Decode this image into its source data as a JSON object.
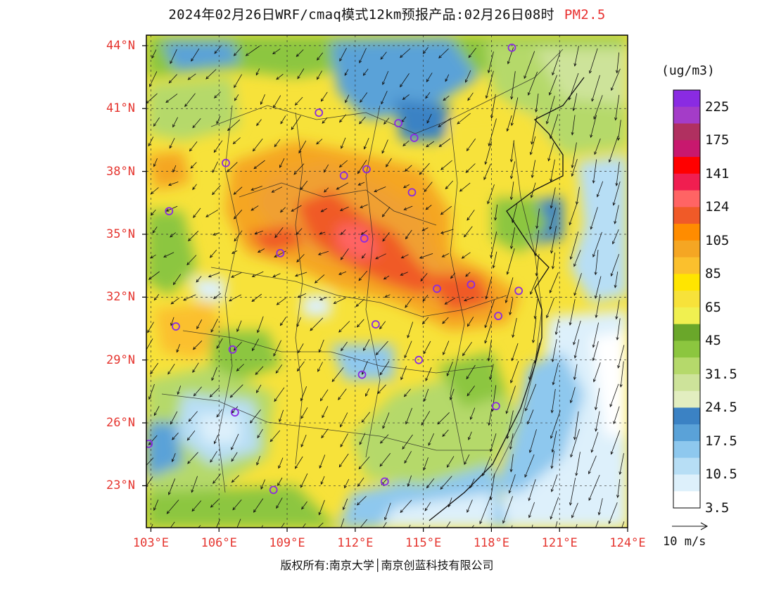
{
  "title": {
    "main": "2024年02月26日WRF/cmaq模式12km预报产品:02月26日08时",
    "variable": "PM2.5"
  },
  "axes": {
    "lat_labels": [
      "44°N",
      "41°N",
      "38°N",
      "35°N",
      "32°N",
      "29°N",
      "26°N",
      "23°N"
    ],
    "lon_labels": [
      "103°E",
      "106°E",
      "109°E",
      "112°E",
      "115°E",
      "118°E",
      "121°E",
      "124°E"
    ],
    "lat_values": [
      44,
      41,
      38,
      35,
      32,
      29,
      26,
      23
    ],
    "lon_values": [
      103,
      106,
      109,
      112,
      115,
      118,
      121,
      124
    ],
    "lat_range": [
      21.0,
      44.5
    ],
    "lon_range": [
      102.8,
      124.0
    ]
  },
  "colorbar": {
    "unit": "(ug/m3)",
    "labels": [
      "225",
      "175",
      "141",
      "124",
      "105",
      "85",
      "65",
      "45",
      "31.5",
      "24.5",
      "17.5",
      "10.5",
      "3.5"
    ],
    "colors_top_to_bottom": [
      "#8a2be2",
      "#a43cc8",
      "#b03060",
      "#c8186e",
      "#ff0000",
      "#f01e50",
      "#ff6464",
      "#f05a28",
      "#ff8c00",
      "#f5a623",
      "#fbc02d",
      "#ffe500",
      "#f7e23a",
      "#f0f050",
      "#6aa72a",
      "#8cc63f",
      "#b5d96b",
      "#cde39a",
      "#e2eec0",
      "#3b82c4",
      "#5aa2d8",
      "#8ec8ee",
      "#b7def5",
      "#ddf0fb",
      "#ffffff"
    ]
  },
  "wind_reference": {
    "label": "10 m/s"
  },
  "copyright": "版权所有:南京大学│南京创蓝科技有限公司",
  "stations": [
    {
      "lon": 118.9,
      "lat": 43.9
    },
    {
      "lon": 110.4,
      "lat": 40.8
    },
    {
      "lon": 113.9,
      "lat": 40.3
    },
    {
      "lon": 114.6,
      "lat": 39.6
    },
    {
      "lon": 111.5,
      "lat": 37.8
    },
    {
      "lon": 112.5,
      "lat": 38.1
    },
    {
      "lon": 106.3,
      "lat": 38.4
    },
    {
      "lon": 103.8,
      "lat": 36.1
    },
    {
      "lon": 114.5,
      "lat": 37.0
    },
    {
      "lon": 112.4,
      "lat": 34.8
    },
    {
      "lon": 108.7,
      "lat": 34.1
    },
    {
      "lon": 115.6,
      "lat": 32.4
    },
    {
      "lon": 117.1,
      "lat": 32.6
    },
    {
      "lon": 119.2,
      "lat": 32.3
    },
    {
      "lon": 118.3,
      "lat": 31.1
    },
    {
      "lon": 112.9,
      "lat": 30.7
    },
    {
      "lon": 104.1,
      "lat": 30.6
    },
    {
      "lon": 106.6,
      "lat": 29.5
    },
    {
      "lon": 114.8,
      "lat": 29.0
    },
    {
      "lon": 112.3,
      "lat": 28.3
    },
    {
      "lon": 106.7,
      "lat": 26.5
    },
    {
      "lon": 102.9,
      "lat": 25.0
    },
    {
      "lon": 118.2,
      "lat": 26.8
    },
    {
      "lon": 108.4,
      "lat": 22.8
    },
    {
      "lon": 113.3,
      "lat": 23.2
    }
  ],
  "colors": {
    "label_red": "#e5352f",
    "station_ring": "#8a2be2",
    "frame": "#000000"
  }
}
